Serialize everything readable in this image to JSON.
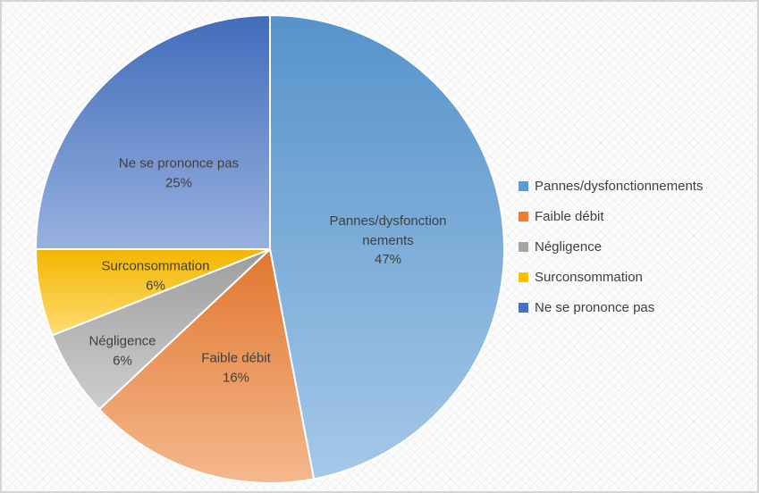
{
  "chart_data": {
    "type": "pie",
    "title": "",
    "categories": [
      "Pannes/dysfonctionnements",
      "Faible débit",
      "Négligence",
      "Surconsommation",
      "Ne se prononce pas"
    ],
    "values": [
      47,
      16,
      6,
      6,
      25
    ],
    "unit": "%",
    "colors": [
      "#5B9BD5",
      "#ED7D31",
      "#A5A5A5",
      "#FFC000",
      "#4472C4"
    ],
    "start_angle_deg": 0,
    "direction": "clockwise",
    "legend_position": "right",
    "slice_labels": [
      {
        "text": "Pannes/dysfonction\nnements\n47%"
      },
      {
        "text": "Faible débit\n16%"
      },
      {
        "text": "Négligence\n6%"
      },
      {
        "text": "Surconsommation\n6%"
      },
      {
        "text": "Ne se prononce pas\n25%"
      }
    ]
  }
}
